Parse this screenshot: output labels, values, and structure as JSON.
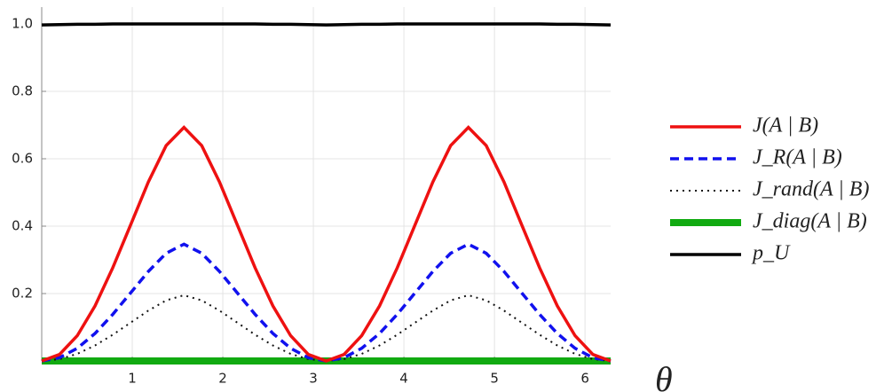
{
  "chart_data": {
    "type": "line",
    "x_label": "θ",
    "x": [
      0,
      0.196,
      0.393,
      0.589,
      0.785,
      0.982,
      1.178,
      1.374,
      1.571,
      1.767,
      1.963,
      2.16,
      2.356,
      2.553,
      2.749,
      2.945,
      3.142,
      3.338,
      3.534,
      3.731,
      3.927,
      4.123,
      4.32,
      4.516,
      4.712,
      4.909,
      5.105,
      5.301,
      5.498,
      5.694,
      5.89,
      6.087,
      6.283
    ],
    "series": [
      {
        "name": "J(A | B)",
        "color": "#ee1111",
        "style": "solid",
        "linewidth": 3.5,
        "values": [
          0,
          0.0192,
          0.0751,
          0.1634,
          0.2767,
          0.4039,
          0.5313,
          0.639,
          0.6931,
          0.639,
          0.5313,
          0.4039,
          0.2767,
          0.1634,
          0.0751,
          0.0192,
          0,
          0.0192,
          0.0751,
          0.1634,
          0.2767,
          0.4039,
          0.5313,
          0.639,
          0.6931,
          0.639,
          0.5313,
          0.4039,
          0.2767,
          0.1634,
          0.0751,
          0.0192,
          0
        ]
      },
      {
        "name": "J_R(A | B)",
        "color": "#1111ee",
        "style": "dashed",
        "linewidth": 3.5,
        "values": [
          0,
          0.0096,
          0.0376,
          0.0817,
          0.1384,
          0.202,
          0.2657,
          0.3195,
          0.3466,
          0.3195,
          0.2657,
          0.202,
          0.1384,
          0.0817,
          0.0376,
          0.0096,
          0,
          0.0096,
          0.0376,
          0.0817,
          0.1384,
          0.202,
          0.2657,
          0.3195,
          0.3466,
          0.3195,
          0.2657,
          0.202,
          0.1384,
          0.0817,
          0.0376,
          0.0096,
          0
        ]
      },
      {
        "name": "J_rand(A | B)",
        "color": "#111111",
        "style": "dotted",
        "linewidth": 2,
        "values": [
          0,
          0.0054,
          0.0211,
          0.046,
          0.0779,
          0.1137,
          0.1495,
          0.1798,
          0.195,
          0.1798,
          0.1495,
          0.1137,
          0.0779,
          0.046,
          0.0211,
          0.0054,
          0,
          0.0054,
          0.0211,
          0.046,
          0.0779,
          0.1137,
          0.1495,
          0.1798,
          0.195,
          0.1798,
          0.1495,
          0.1137,
          0.0779,
          0.046,
          0.0211,
          0.0054,
          0
        ]
      },
      {
        "name": "J_diag(A | B)",
        "color": "#11aa11",
        "style": "solid",
        "linewidth": 8,
        "values": [
          0,
          0,
          0,
          0,
          0,
          0,
          0,
          0,
          0,
          0,
          0,
          0,
          0,
          0,
          0,
          0,
          0,
          0,
          0,
          0,
          0,
          0,
          0,
          0,
          0,
          0,
          0,
          0,
          0,
          0,
          0,
          0,
          0
        ]
      },
      {
        "name": "p_U",
        "color": "#000000",
        "style": "solid",
        "linewidth": 3.5,
        "values": [
          0.997,
          0.998,
          0.999,
          0.999,
          1,
          1,
          1,
          1,
          1,
          1,
          1,
          1,
          1,
          0.999,
          0.999,
          0.998,
          0.997,
          0.998,
          0.999,
          0.999,
          1,
          1,
          1,
          1,
          1,
          1,
          1,
          1,
          1,
          0.999,
          0.999,
          0.998,
          0.997
        ]
      }
    ],
    "xlim": [
      0,
      6.283
    ],
    "ylim": [
      0,
      1.05
    ],
    "xticks": [
      1,
      2,
      3,
      4,
      5,
      6
    ],
    "yticks": [
      0.2,
      0.4,
      0.6,
      0.8,
      {
        "value": 1,
        "label": "1.0"
      }
    ],
    "grid": true,
    "legend": "right"
  }
}
